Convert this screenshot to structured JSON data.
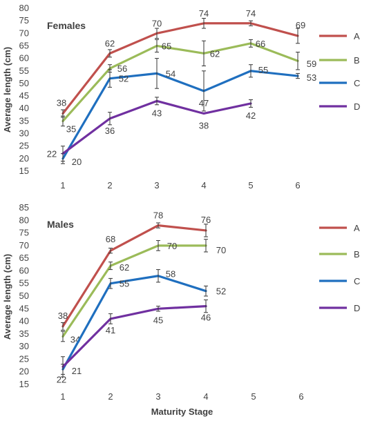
{
  "chart_data": [
    {
      "type": "line",
      "title": "Females",
      "xlabel": "",
      "ylabel": "Average length (cm)",
      "categories": [
        "1",
        "2",
        "3",
        "4",
        "5",
        "6"
      ],
      "ylim": [
        15,
        80
      ],
      "yticks": [
        15,
        20,
        25,
        30,
        35,
        40,
        45,
        50,
        55,
        60,
        65,
        70,
        75,
        80
      ],
      "grid": false,
      "legend_position": "right",
      "series": [
        {
          "name": "A",
          "color": "#C0504D",
          "values": [
            38,
            62,
            70,
            74,
            74,
            69
          ],
          "errors": [
            1.5,
            1.5,
            2,
            2,
            1,
            3
          ],
          "labels": [
            "38",
            "62",
            "70",
            "74",
            "74",
            "69"
          ]
        },
        {
          "name": "B",
          "color": "#9BBB59",
          "values": [
            35,
            56,
            65,
            62,
            66,
            59
          ],
          "errors": [
            2,
            1.5,
            2.5,
            5,
            1.5,
            3.5
          ],
          "labels": [
            "35",
            "56",
            "65",
            "62",
            "66",
            "59"
          ]
        },
        {
          "name": "C",
          "color": "#1F6FBF",
          "values": [
            20,
            52,
            54,
            47,
            55,
            53
          ],
          "errors": [
            2,
            3.5,
            6,
            8,
            2.5,
            1
          ],
          "labels": [
            "20",
            "52",
            "54",
            "47",
            "55",
            "53"
          ]
        },
        {
          "name": "D",
          "color": "#7030A0",
          "values": [
            22,
            36,
            43,
            38,
            42,
            null
          ],
          "errors": [
            3,
            2.5,
            1.5,
            0,
            1.5,
            null
          ],
          "labels": [
            "22",
            "36",
            "43",
            "38",
            "42",
            null
          ]
        }
      ]
    },
    {
      "type": "line",
      "title": "Males",
      "xlabel": "Maturity Stage",
      "ylabel": "Average length (cm)",
      "categories": [
        "1",
        "2",
        "3",
        "4",
        "5",
        "6"
      ],
      "ylim": [
        15,
        85
      ],
      "yticks": [
        15,
        20,
        25,
        30,
        35,
        40,
        45,
        50,
        55,
        60,
        65,
        70,
        75,
        80,
        85
      ],
      "grid": false,
      "legend_position": "right",
      "series": [
        {
          "name": "A",
          "color": "#C0504D",
          "values": [
            38,
            68,
            78,
            76,
            null,
            null
          ],
          "errors": [
            1.5,
            1,
            1,
            2.5,
            null,
            null
          ],
          "labels": [
            "38",
            "68",
            "78",
            "76",
            null,
            null
          ]
        },
        {
          "name": "B",
          "color": "#9BBB59",
          "values": [
            34,
            62,
            70,
            70,
            null,
            null
          ],
          "errors": [
            2,
            1.5,
            2,
            2.5,
            null,
            null
          ],
          "labels": [
            "34",
            "62",
            "70",
            "70",
            null,
            null
          ]
        },
        {
          "name": "C",
          "color": "#1F6FBF",
          "values": [
            21,
            55,
            58,
            52,
            null,
            null
          ],
          "errors": [
            2,
            2,
            2.5,
            2,
            null,
            null
          ],
          "labels": [
            "21",
            "55",
            "58",
            "52",
            null,
            null
          ]
        },
        {
          "name": "D",
          "color": "#7030A0",
          "values": [
            22,
            41,
            45,
            46,
            null,
            null
          ],
          "errors": [
            4,
            2,
            1,
            2.5,
            null,
            null
          ],
          "labels": [
            "22",
            "41",
            "45",
            "46",
            null,
            null
          ]
        }
      ]
    }
  ]
}
